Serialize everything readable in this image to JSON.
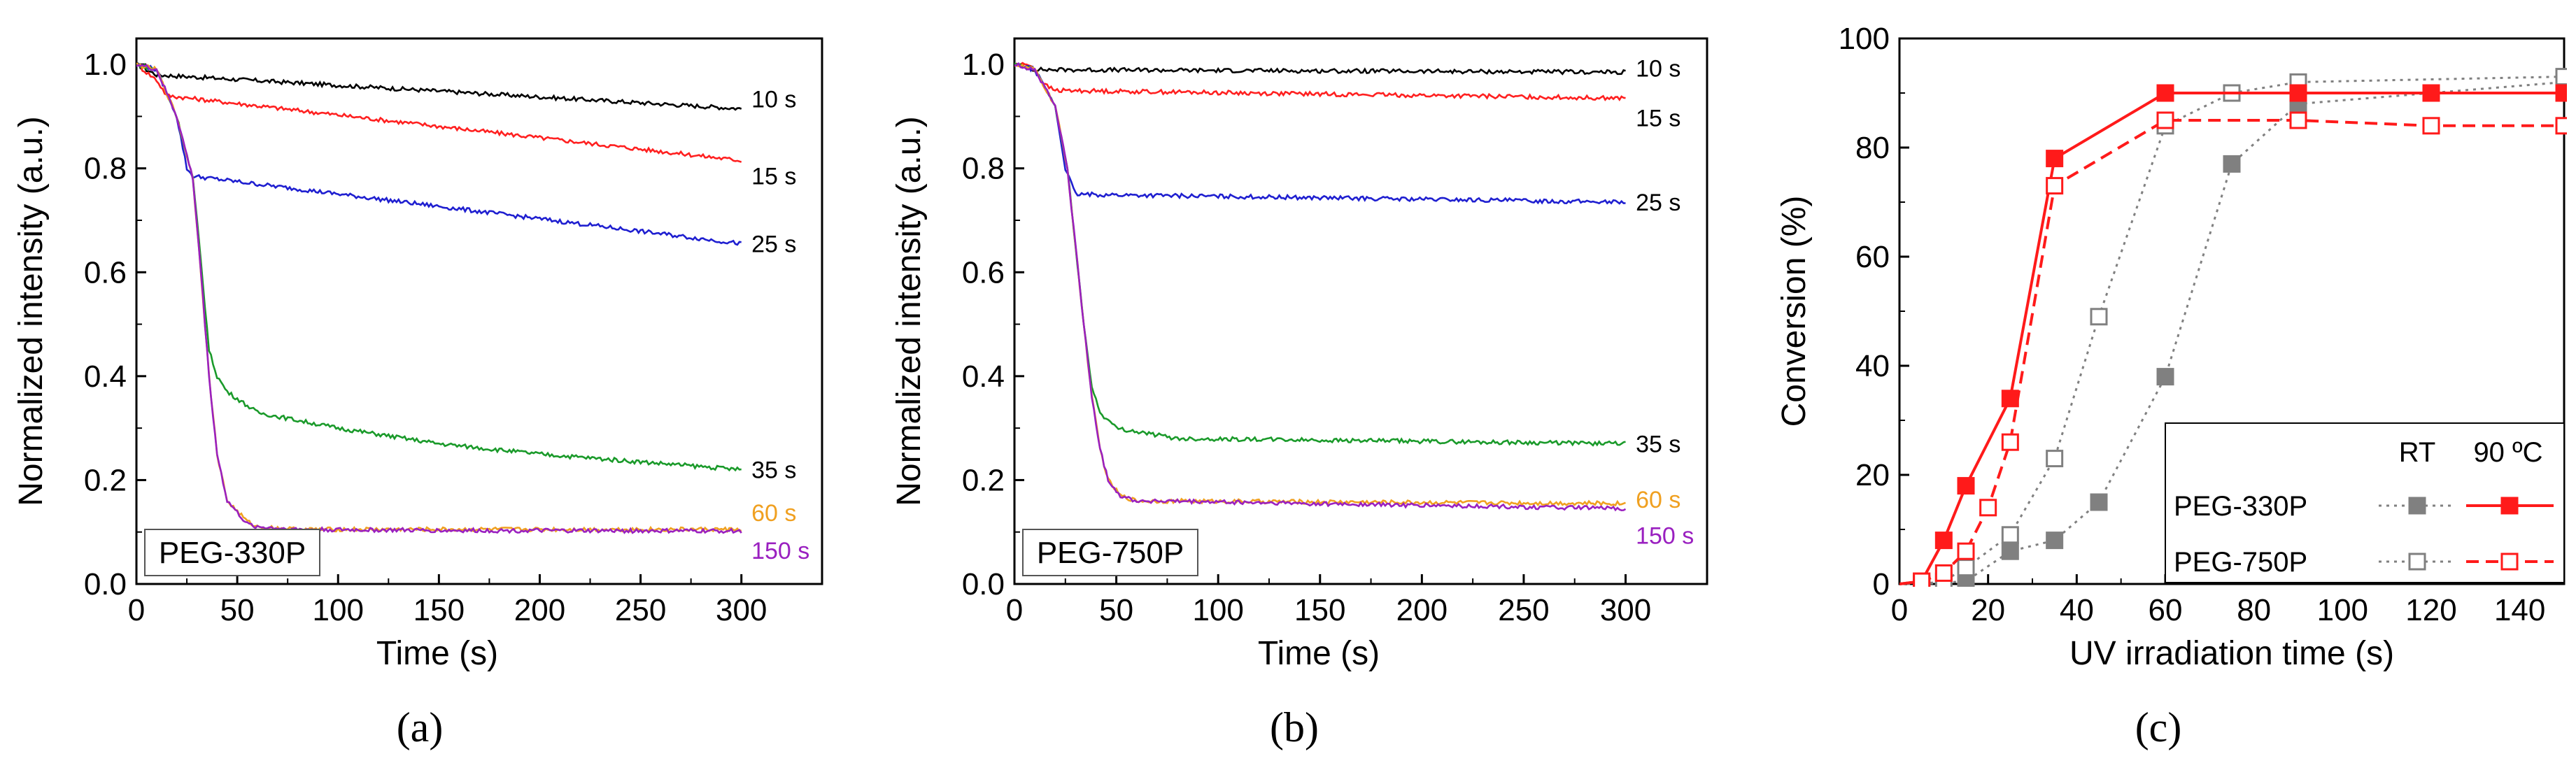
{
  "chart_data": [
    {
      "panel": "(a)",
      "type": "line",
      "sample_label": "PEG-330P",
      "xlabel": "Time (s)",
      "ylabel": "Normalized intensity (a.u.)",
      "xlim": [
        0,
        340
      ],
      "ylim": [
        0,
        1.05
      ],
      "xticks": [
        "0",
        "50",
        "100",
        "150",
        "200",
        "250",
        "300"
      ],
      "yticks": [
        "0.0",
        "0.2",
        "0.4",
        "0.6",
        "0.8",
        "1.0"
      ],
      "series": [
        {
          "name": "10 s",
          "color": "#000000",
          "x": [
            0,
            10,
            300
          ],
          "y": [
            1.0,
            0.98,
            0.915
          ]
        },
        {
          "name": "15 s",
          "color": "#ff2020",
          "x": [
            0,
            10,
            15,
            300
          ],
          "y": [
            1.0,
            0.97,
            0.94,
            0.815
          ]
        },
        {
          "name": "25 s",
          "color": "#1f1fd0",
          "x": [
            0,
            10,
            20,
            25,
            28,
            300
          ],
          "y": [
            1.0,
            0.99,
            0.9,
            0.8,
            0.785,
            0.655
          ]
        },
        {
          "name": "35 s",
          "color": "#1a9a2a",
          "x": [
            0,
            10,
            20,
            28,
            32,
            36,
            40,
            45,
            60,
            100,
            150,
            200,
            300
          ],
          "y": [
            1.0,
            0.99,
            0.9,
            0.78,
            0.62,
            0.45,
            0.4,
            0.37,
            0.33,
            0.3,
            0.27,
            0.25,
            0.22
          ]
        },
        {
          "name": "60 s",
          "color": "#f0a020",
          "x": [
            0,
            10,
            20,
            28,
            32,
            36,
            40,
            45,
            55,
            60,
            80,
            150,
            300
          ],
          "y": [
            1.0,
            0.99,
            0.9,
            0.78,
            0.6,
            0.4,
            0.25,
            0.16,
            0.12,
            0.11,
            0.105,
            0.105,
            0.105
          ]
        },
        {
          "name": "150 s",
          "color": "#9a20c0",
          "x": [
            0,
            10,
            20,
            28,
            32,
            36,
            40,
            45,
            55,
            60,
            80,
            150,
            300
          ],
          "y": [
            1.0,
            0.99,
            0.9,
            0.78,
            0.6,
            0.4,
            0.25,
            0.16,
            0.115,
            0.11,
            0.105,
            0.103,
            0.102
          ]
        }
      ]
    },
    {
      "panel": "(b)",
      "type": "line",
      "sample_label": "PEG-750P",
      "xlabel": "Time (s)",
      "ylabel": "Normalized intensity (a.u.)",
      "xlim": [
        0,
        340
      ],
      "ylim": [
        0,
        1.05
      ],
      "xticks": [
        "0",
        "50",
        "100",
        "150",
        "200",
        "250",
        "300"
      ],
      "yticks": [
        "0.0",
        "0.2",
        "0.4",
        "0.6",
        "0.8",
        "1.0"
      ],
      "series": [
        {
          "name": "10 s",
          "color": "#000000",
          "x": [
            0,
            10,
            300
          ],
          "y": [
            1.0,
            0.99,
            0.985
          ]
        },
        {
          "name": "15 s",
          "color": "#ff2020",
          "x": [
            0,
            8,
            15,
            20,
            300
          ],
          "y": [
            1.0,
            1.0,
            0.96,
            0.95,
            0.935
          ]
        },
        {
          "name": "25 s",
          "color": "#1f1fd0",
          "x": [
            0,
            10,
            20,
            25,
            30,
            300
          ],
          "y": [
            1.0,
            0.99,
            0.92,
            0.8,
            0.75,
            0.735
          ]
        },
        {
          "name": "35 s",
          "color": "#1a9a2a",
          "x": [
            0,
            10,
            20,
            26,
            30,
            34,
            38,
            42,
            50,
            80,
            300
          ],
          "y": [
            1.0,
            0.99,
            0.92,
            0.8,
            0.65,
            0.5,
            0.38,
            0.33,
            0.3,
            0.28,
            0.27
          ]
        },
        {
          "name": "60 s",
          "color": "#f0a020",
          "x": [
            0,
            10,
            20,
            26,
            30,
            34,
            38,
            42,
            46,
            52,
            60,
            300
          ],
          "y": [
            1.0,
            0.99,
            0.92,
            0.8,
            0.65,
            0.5,
            0.36,
            0.26,
            0.2,
            0.17,
            0.16,
            0.155
          ]
        },
        {
          "name": "150 s",
          "color": "#9a20c0",
          "x": [
            0,
            10,
            20,
            26,
            30,
            34,
            38,
            42,
            46,
            52,
            60,
            300
          ],
          "y": [
            1.0,
            0.99,
            0.92,
            0.8,
            0.65,
            0.5,
            0.36,
            0.26,
            0.2,
            0.17,
            0.16,
            0.145
          ]
        }
      ]
    },
    {
      "panel": "(c)",
      "type": "line",
      "xlabel": "UV irradiation time (s)",
      "ylabel": "Conversion (%)",
      "xlim": [
        0,
        150
      ],
      "ylim": [
        0,
        100
      ],
      "xticks": [
        "0",
        "20",
        "40",
        "60",
        "80",
        "100",
        "120",
        "140"
      ],
      "yticks": [
        "0",
        "20",
        "40",
        "60",
        "80",
        "100"
      ],
      "legend": {
        "col_rt": "RT",
        "col_hot": "90 ºC",
        "rows": [
          "PEG-330P",
          "PEG-750P"
        ]
      },
      "series": [
        {
          "name": "PEG-330P RT",
          "color": "#808080",
          "marker": "square-filled",
          "dash": "dotted",
          "x": [
            0,
            5,
            15,
            25,
            35,
            45,
            60,
            75,
            90,
            150
          ],
          "y": [
            0,
            0,
            0.5,
            6,
            8,
            15,
            38,
            77,
            88,
            92
          ]
        },
        {
          "name": "PEG-750P RT",
          "color": "#808080",
          "marker": "square-open",
          "dash": "dotted",
          "x": [
            0,
            5,
            10,
            15,
            25,
            35,
            45,
            60,
            75,
            90,
            150
          ],
          "y": [
            0,
            0,
            0.5,
            3,
            9,
            23,
            49,
            84,
            90,
            92,
            93
          ]
        },
        {
          "name": "PEG-330P 90 ºC",
          "color": "#ff1a1a",
          "marker": "square-filled",
          "dash": "solid",
          "x": [
            0,
            5,
            10,
            15,
            25,
            35,
            60,
            90,
            120,
            150
          ],
          "y": [
            0,
            0.5,
            8,
            18,
            34,
            78,
            90,
            90,
            90,
            90
          ]
        },
        {
          "name": "PEG-750P 90 ºC",
          "color": "#ff1a1a",
          "marker": "square-open",
          "dash": "dashed",
          "x": [
            0,
            5,
            10,
            15,
            20,
            25,
            35,
            60,
            90,
            120,
            150
          ],
          "y": [
            0,
            0.5,
            2,
            6,
            14,
            26,
            73,
            85,
            85,
            84,
            84
          ]
        }
      ]
    }
  ]
}
